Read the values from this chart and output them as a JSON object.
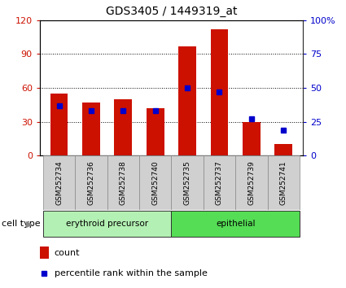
{
  "title": "GDS3405 / 1449319_at",
  "samples": [
    "GSM252734",
    "GSM252736",
    "GSM252738",
    "GSM252740",
    "GSM252735",
    "GSM252737",
    "GSM252739",
    "GSM252741"
  ],
  "counts": [
    55,
    47,
    50,
    42,
    97,
    112,
    30,
    10
  ],
  "percentiles": [
    37,
    33,
    33,
    33,
    50,
    47,
    27,
    19
  ],
  "cell_types": [
    {
      "label": "erythroid precursor",
      "indices": [
        0,
        1,
        2,
        3
      ],
      "color": "#b3f0b3"
    },
    {
      "label": "epithelial",
      "indices": [
        4,
        5,
        6,
        7
      ],
      "color": "#55dd55"
    }
  ],
  "bar_color": "#cc1100",
  "percentile_color": "#0000cc",
  "left_ylim": [
    0,
    120
  ],
  "left_yticks": [
    0,
    30,
    60,
    90,
    120
  ],
  "right_ylim": [
    0,
    100
  ],
  "right_yticks": [
    0,
    25,
    50,
    75,
    100
  ],
  "right_yticklabels": [
    "0",
    "25",
    "50",
    "75",
    "100%"
  ],
  "title_color": "#000000",
  "left_tick_color": "#cc1100",
  "right_tick_color": "#0000cc",
  "sample_box_color": "#d0d0d0",
  "legend_count_label": "count",
  "legend_pct_label": "percentile rank within the sample",
  "cell_type_label": "cell type"
}
